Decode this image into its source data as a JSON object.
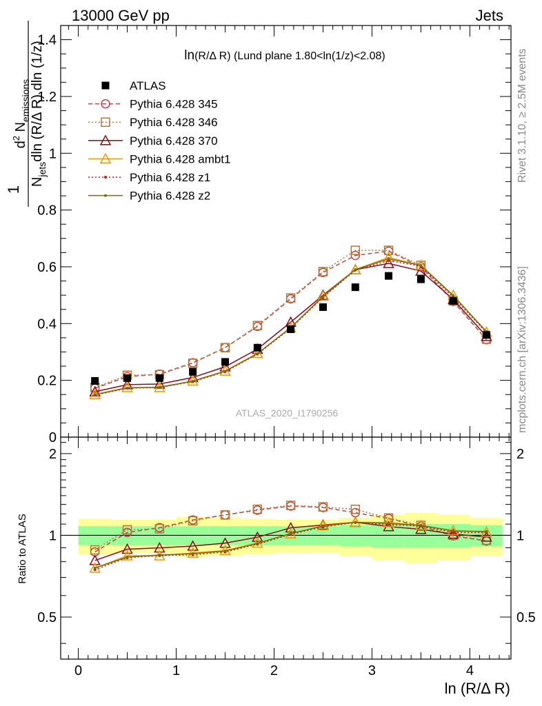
{
  "header": {
    "left": "13000 GeV pp",
    "right": "Jets"
  },
  "side_labels": {
    "rivet": "Rivet 3.1.10, ≥ 2.5M events",
    "mcplots": "mcplots.cern.ch [arXiv:1306.3436]"
  },
  "watermark": "ATLAS_2020_I1790256",
  "chart_data": {
    "type": "line",
    "title": "ln(R/Δ R) (Lund plane 1.80<ln(1/z)<2.08)",
    "title_main": "ln",
    "title_sub": "(R/Δ R)",
    "title_rest": " (Lund plane 1.80<ln(1/z)<2.08)",
    "xlabel": "ln (R/Δ R)",
    "ylabel": "1/N_jets dln (R/Δ R) dln (1/z) d² N_emissions",
    "ylabel_parts": {
      "num_big": "1",
      "num_d": "d",
      "num_sup": "2",
      "num_n": " N",
      "num_sub": "emissions",
      "den_n": "N",
      "den_sub": "jets",
      "den_rest": "dln (R/Δ R) dln (1/z)"
    },
    "ratio_ylabel": "Ratio to ATLAS",
    "xlim": [
      -0.18,
      4.42
    ],
    "ylim": [
      0,
      1.45
    ],
    "ratio_ylim": [
      0.35,
      2.3
    ],
    "x_ticks": [
      "0",
      "1",
      "2",
      "3",
      "4"
    ],
    "y_ticks": [
      "0",
      "0.2",
      "0.4",
      "0.6",
      "0.8",
      "1",
      "1.2",
      "1.4"
    ],
    "ratio_ticks": [
      "0.5",
      "1",
      "2"
    ],
    "x": [
      0.17,
      0.5,
      0.83,
      1.17,
      1.5,
      1.83,
      2.17,
      2.5,
      2.83,
      3.17,
      3.5,
      3.83,
      4.17
    ],
    "bin_edges": [
      0,
      0.333,
      0.667,
      1.0,
      1.333,
      1.667,
      2.0,
      2.333,
      2.667,
      3.0,
      3.333,
      3.667,
      4.0,
      4.333
    ],
    "atlas": {
      "name": "ATLAS",
      "values": [
        0.198,
        0.208,
        0.208,
        0.23,
        0.265,
        0.315,
        0.38,
        0.458,
        0.528,
        0.568,
        0.556,
        0.48,
        0.36
      ]
    },
    "series": [
      {
        "name": "Pythia 6.428 345",
        "color": "#b84646",
        "dash": "6,4",
        "marker": "circle",
        "values": [
          0.172,
          0.213,
          0.222,
          0.262,
          0.315,
          0.39,
          0.487,
          0.58,
          0.64,
          0.655,
          0.6,
          0.478,
          0.343
        ]
      },
      {
        "name": "Pythia 6.428 346",
        "color": "#b07838",
        "dash": "2,3",
        "marker": "square",
        "values": [
          0.175,
          0.218,
          0.22,
          0.26,
          0.315,
          0.393,
          0.49,
          0.583,
          0.658,
          0.658,
          0.605,
          0.48,
          0.345
        ]
      },
      {
        "name": "Pythia 6.428 370",
        "color": "#8b0a1a",
        "dash": "",
        "marker": "triangle",
        "values": [
          0.16,
          0.185,
          0.187,
          0.21,
          0.248,
          0.31,
          0.405,
          0.5,
          0.59,
          0.612,
          0.585,
          0.485,
          0.355
        ]
      },
      {
        "name": "Pythia 6.428 ambt1",
        "color": "#e89a00",
        "dash": "",
        "marker": "triangle",
        "values": [
          0.15,
          0.175,
          0.175,
          0.198,
          0.233,
          0.295,
          0.385,
          0.497,
          0.59,
          0.633,
          0.605,
          0.5,
          0.37
        ]
      },
      {
        "name": "Pythia 6.428 z1",
        "color": "#c41818",
        "dash": "2,3",
        "marker": "dot",
        "values": [
          0.148,
          0.172,
          0.175,
          0.195,
          0.23,
          0.292,
          0.383,
          0.492,
          0.588,
          0.622,
          0.602,
          0.492,
          0.368
        ]
      },
      {
        "name": "Pythia 6.428 z2",
        "color": "#7a6a10",
        "dash": "",
        "marker": "dot",
        "values": [
          0.15,
          0.173,
          0.176,
          0.197,
          0.232,
          0.294,
          0.386,
          0.495,
          0.59,
          0.628,
          0.605,
          0.498,
          0.372
        ]
      }
    ],
    "bands": {
      "green": [
        0.08,
        0.08,
        0.08,
        0.08,
        0.08,
        0.08,
        0.08,
        0.08,
        0.09,
        0.1,
        0.1,
        0.1,
        0.09
      ],
      "yellow": [
        0.15,
        0.14,
        0.14,
        0.17,
        0.16,
        0.15,
        0.14,
        0.14,
        0.16,
        0.19,
        0.21,
        0.19,
        0.16
      ]
    }
  }
}
